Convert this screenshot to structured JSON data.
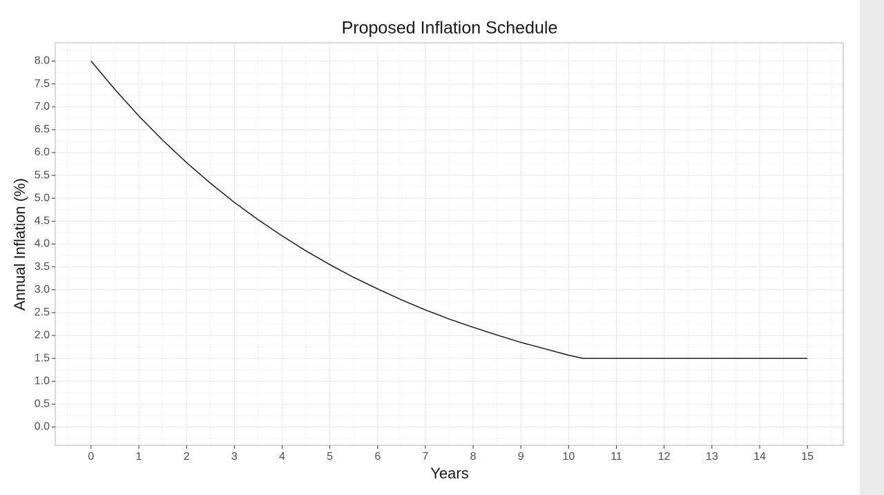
{
  "chart_data": {
    "type": "line",
    "title": "Proposed Inflation Schedule",
    "x_label": "Years",
    "y_label": "Annual Inflation (%)",
    "x": [
      0,
      0.5,
      1,
      1.5,
      2,
      2.5,
      3,
      3.5,
      4,
      4.5,
      5,
      5.5,
      6,
      6.5,
      7,
      7.5,
      8,
      8.5,
      9,
      9.5,
      10,
      10.3,
      15
    ],
    "series": [
      {
        "name": "Annual Inflation",
        "color": "#1a1a1a",
        "values": [
          8.0,
          7.38,
          6.8,
          6.27,
          5.78,
          5.33,
          4.91,
          4.53,
          4.18,
          3.85,
          3.55,
          3.27,
          3.02,
          2.78,
          2.56,
          2.36,
          2.18,
          2.01,
          1.85,
          1.71,
          1.57,
          1.5,
          1.5
        ]
      }
    ],
    "xlim": [
      -0.75,
      15.75
    ],
    "xticks": [
      0,
      1,
      2,
      3,
      4,
      5,
      6,
      7,
      8,
      9,
      10,
      11,
      12,
      13,
      14,
      15
    ],
    "ylim": [
      -0.4,
      8.4
    ],
    "yticks": [
      {
        "value": 0,
        "label": "0.0"
      },
      0.5,
      {
        "value": 1,
        "label": "1.0"
      },
      1.5,
      {
        "value": 2,
        "label": "2.0"
      },
      2.5,
      {
        "value": 3,
        "label": "3.0"
      },
      3.5,
      {
        "value": 4,
        "label": "4.0"
      },
      4.5,
      {
        "value": 5,
        "label": "5.0"
      },
      5.5,
      {
        "value": 6,
        "label": "6.0"
      },
      6.5,
      {
        "value": 7,
        "label": "7.0"
      },
      7.5,
      {
        "value": 8,
        "label": "8.0"
      }
    ],
    "grid": true,
    "minor_grid": true
  }
}
